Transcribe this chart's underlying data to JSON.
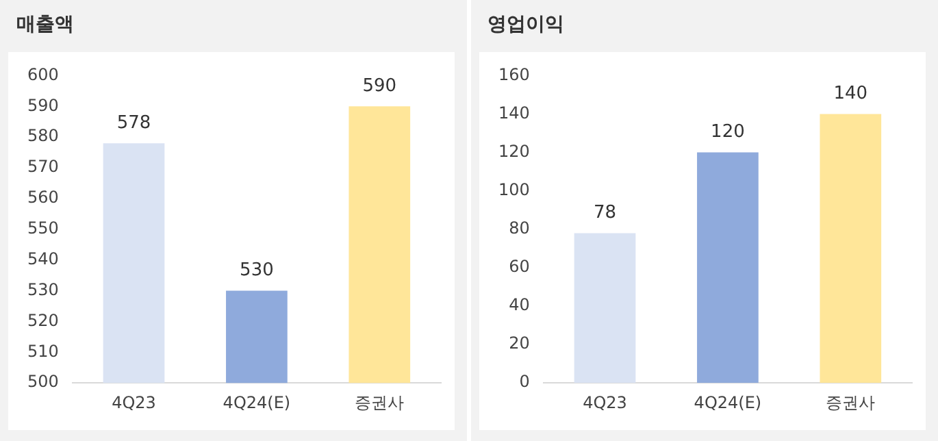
{
  "chart_data": [
    {
      "type": "bar",
      "title": "매출액",
      "categories": [
        "4Q23",
        "4Q24(E)",
        "증권사"
      ],
      "values": [
        578,
        530,
        590
      ],
      "colors": [
        "#dae3f3",
        "#8faadc",
        "#ffe699"
      ],
      "ylim": [
        500,
        600
      ],
      "yticks": [
        500,
        510,
        520,
        530,
        540,
        550,
        560,
        570,
        580,
        590,
        600
      ],
      "data_labels": true,
      "grid": false,
      "legend": false
    },
    {
      "type": "bar",
      "title": "영업이익",
      "categories": [
        "4Q23",
        "4Q24(E)",
        "증권사"
      ],
      "values": [
        78,
        120,
        140
      ],
      "colors": [
        "#dae3f3",
        "#8faadc",
        "#ffe699"
      ],
      "ylim": [
        0,
        160
      ],
      "yticks": [
        0,
        20,
        40,
        60,
        80,
        100,
        120,
        140,
        160
      ],
      "data_labels": true,
      "grid": false,
      "legend": false
    }
  ]
}
